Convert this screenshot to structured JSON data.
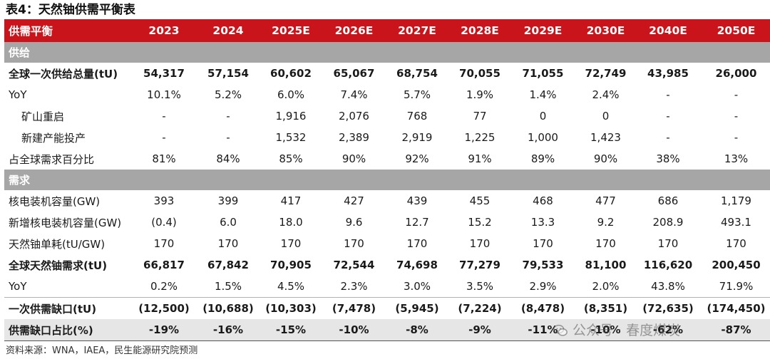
{
  "title": "表4：天然铀供需平衡表",
  "header": {
    "label": "供需平衡",
    "years": [
      "2023",
      "2024",
      "2025E",
      "2026E",
      "2027E",
      "2028E",
      "2029E",
      "2030E",
      "2040E",
      "2050E"
    ]
  },
  "sections": [
    {
      "name": "供给",
      "rows": [
        {
          "label": "全球一次供给总量(tU)",
          "values": [
            "54,317",
            "57,154",
            "60,602",
            "65,067",
            "68,754",
            "70,055",
            "71,055",
            "72,749",
            "43,985",
            "26,000"
          ]
        },
        {
          "label": "YoY",
          "values": [
            "10.1%",
            "5.2%",
            "6.0%",
            "7.4%",
            "5.7%",
            "1.9%",
            "1.4%",
            "2.4%",
            "-",
            "-"
          ]
        },
        {
          "label": "矿山重启",
          "values": [
            "-",
            "-",
            "1,916",
            "2,076",
            "768",
            "77",
            "0",
            "0",
            "-",
            "-"
          ]
        },
        {
          "label": "新建产能投产",
          "values": [
            "-",
            "-",
            "1,532",
            "2,389",
            "2,919",
            "1,225",
            "1,000",
            "1,423",
            "-",
            "-"
          ]
        },
        {
          "label": "占全球需求百分比",
          "values": [
            "81%",
            "84%",
            "85%",
            "90%",
            "92%",
            "91%",
            "89%",
            "90%",
            "38%",
            "13%"
          ]
        }
      ]
    },
    {
      "name": "需求",
      "rows": [
        {
          "label": "核电装机容量(GW)",
          "values": [
            "393",
            "399",
            "417",
            "427",
            "439",
            "455",
            "468",
            "477",
            "686",
            "1,179"
          ]
        },
        {
          "label": "新增核电装机容量(GW)",
          "values": [
            "(0.4)",
            "6.0",
            "18.0",
            "9.6",
            "12.7",
            "15.2",
            "13.3",
            "9.2",
            "208.9",
            "493.1"
          ]
        },
        {
          "label": "天然铀单耗(tU/GW)",
          "values": [
            "170",
            "170",
            "170",
            "170",
            "170",
            "170",
            "170",
            "170",
            "170",
            "170"
          ]
        },
        {
          "label": "全球天然铀需求(tU)",
          "values": [
            "66,817",
            "67,842",
            "70,905",
            "72,544",
            "74,698",
            "77,279",
            "79,533",
            "81,100",
            "116,620",
            "200,450"
          ]
        },
        {
          "label": "YoY",
          "values": [
            "0.2%",
            "1.5%",
            "4.5%",
            "2.3%",
            "3.0%",
            "3.5%",
            "2.9%",
            "2.0%",
            "43.8%",
            "71.9%"
          ]
        }
      ]
    }
  ],
  "summary_rows": [
    {
      "label": "一次供需缺口(tU)",
      "values": [
        "(12,500)",
        "(10,688)",
        "(10,303)",
        "(7,478)",
        "(5,945)",
        "(7,224)",
        "(8,478)",
        "(8,351)",
        "(72,635)",
        "(174,450)"
      ]
    },
    {
      "label": "供需缺口占比(%)",
      "values": [
        "-19%",
        "-16%",
        "-15%",
        "-10%",
        "-8%",
        "-9%",
        "-11%",
        "-10%",
        "-62%",
        "-87%"
      ]
    }
  ],
  "source": "资料来源：WNA，IAEA，民生能源研究院预测",
  "watermark": "公众号 · 春度煤炭",
  "colors": {
    "header_bg": "#c8141a",
    "section_bg": "#a6a6a6",
    "shaded_row": "#e6e6e6"
  }
}
